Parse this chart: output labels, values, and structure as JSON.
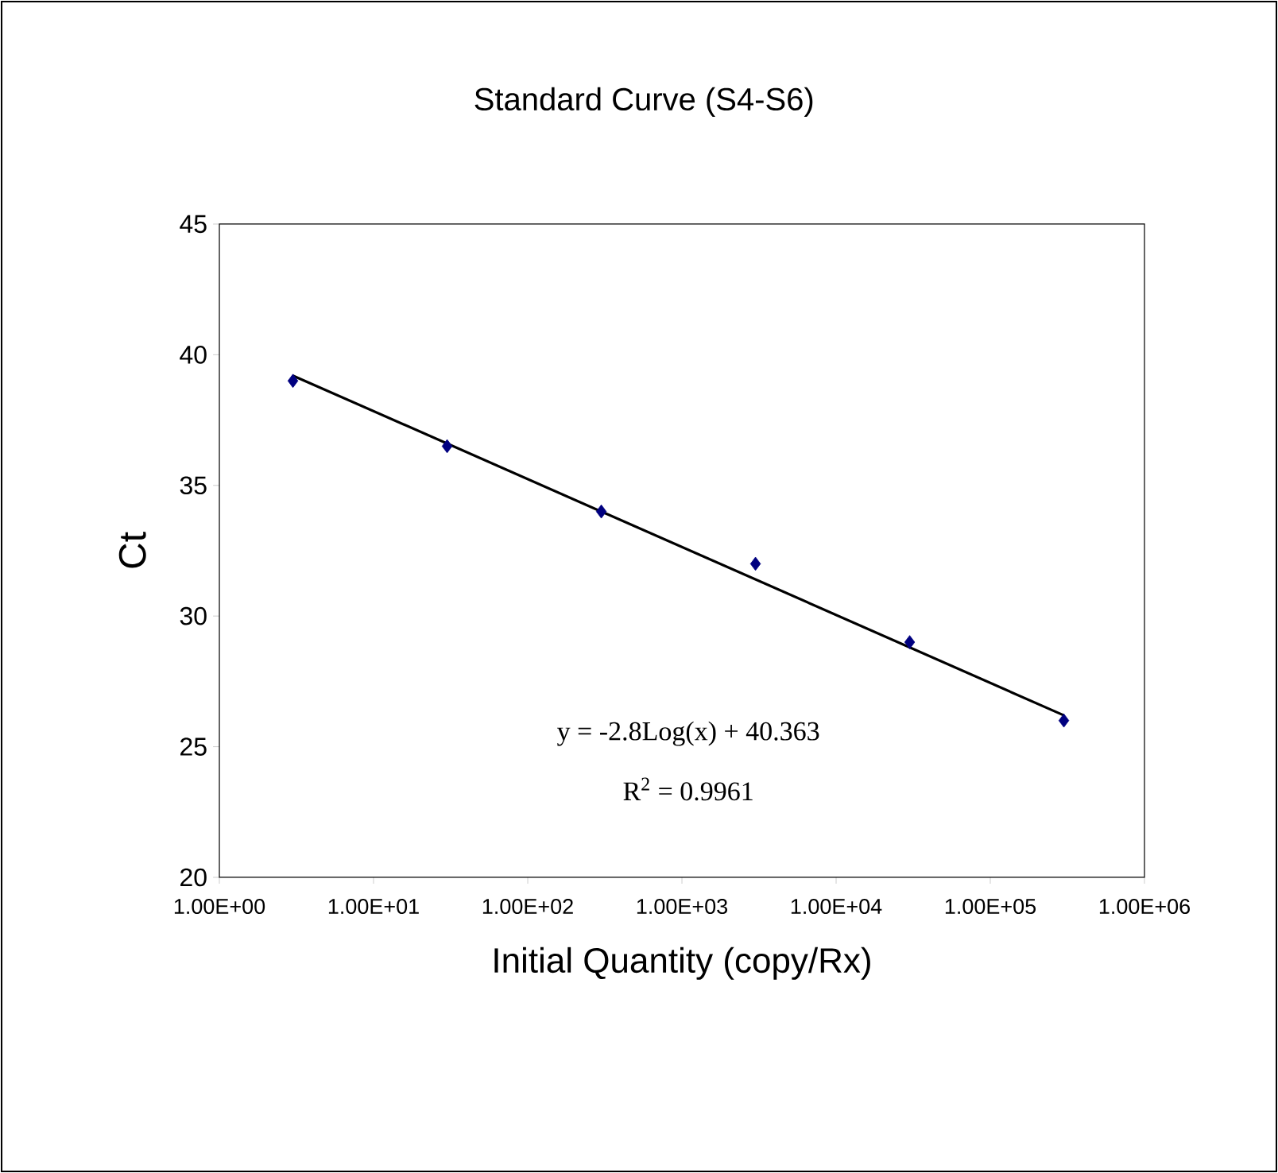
{
  "chart_data": {
    "type": "scatter",
    "title": "Standard Curve (S4-S6)",
    "xlabel": "Initial Quantity (copy/Rx)",
    "ylabel": "Ct",
    "log": "x",
    "xlim": [
      1,
      1000000
    ],
    "ylim": [
      20,
      45
    ],
    "xticks": [
      {
        "value": 1,
        "label": "1.00E+00"
      },
      {
        "value": 10,
        "label": "1.00E+01"
      },
      {
        "value": 100,
        "label": "1.00E+02"
      },
      {
        "value": 1000,
        "label": "1.00E+03"
      },
      {
        "value": 10000,
        "label": "1.00E+04"
      },
      {
        "value": 100000,
        "label": "1.00E+05"
      },
      {
        "value": 1000000,
        "label": "1.00E+06"
      }
    ],
    "yticks": [
      20,
      25,
      30,
      35,
      40,
      45
    ],
    "x": [
      3,
      30,
      300,
      3000,
      30000,
      300000
    ],
    "series": [
      {
        "color": "#000080",
        "marker": "diamond",
        "values": [
          39,
          36.5,
          34,
          32,
          29,
          26
        ]
      },
      {
        "type": "line",
        "color": "#000000",
        "marker": "none",
        "x": [
          3,
          300000
        ],
        "values": [
          39.2,
          26.2
        ]
      }
    ],
    "annotations": [
      "y = -2.8Log(x) + 40.363",
      "R$^{2}$ = 0.9961"
    ]
  }
}
